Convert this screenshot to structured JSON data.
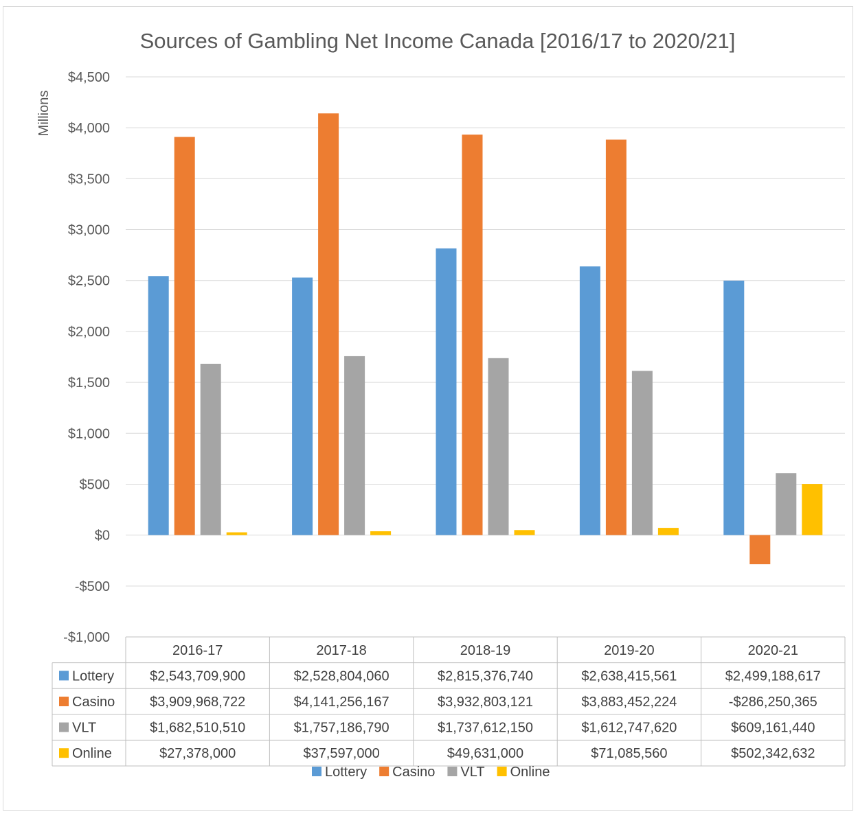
{
  "chart_data": {
    "type": "bar",
    "title": "Sources of Gambling Net Income Canada [2016/17 to 2020/21]",
    "ylabel": "Millions",
    "xlabel": "",
    "ylim": [
      -1000,
      4500
    ],
    "y_ticks": [
      -1000,
      -500,
      0,
      500,
      1000,
      1500,
      2000,
      2500,
      3000,
      3500,
      4000,
      4500
    ],
    "y_tick_labels": [
      "-$1,000",
      "-$500",
      "$0",
      "$500",
      "$1,000",
      "$1,500",
      "$2,000",
      "$2,500",
      "$3,000",
      "$3,500",
      "$4,000",
      "$4,500"
    ],
    "grid": true,
    "legend_position": "bottom",
    "categories": [
      "2016-17",
      "2017-18",
      "2018-19",
      "2019-20",
      "2020-21"
    ],
    "series": [
      {
        "name": "Lottery",
        "color": "#5b9bd5",
        "values": [
          2543709900,
          2528804060,
          2815376740,
          2638415561,
          2499188617
        ],
        "table_labels": [
          "$2,543,709,900",
          "$2,528,804,060",
          "$2,815,376,740",
          "$2,638,415,561",
          "$2,499,188,617"
        ]
      },
      {
        "name": "Casino",
        "color": "#ed7d31",
        "values": [
          3909968722,
          4141256167,
          3932803121,
          3883452224,
          -286250365
        ],
        "table_labels": [
          "$3,909,968,722",
          "$4,141,256,167",
          "$3,932,803,121",
          "$3,883,452,224",
          "-$286,250,365"
        ]
      },
      {
        "name": "VLT",
        "color": "#a5a5a5",
        "values": [
          1682510510,
          1757186790,
          1737612150,
          1612747620,
          609161440
        ],
        "table_labels": [
          "$1,682,510,510",
          "$1,757,186,790",
          "$1,737,612,150",
          "$1,612,747,620",
          "$609,161,440"
        ]
      },
      {
        "name": "Online",
        "color": "#ffc000",
        "values": [
          27378000,
          37597000,
          49631000,
          71085560,
          502342632
        ],
        "table_labels": [
          "$27,378,000",
          "$37,597,000",
          "$49,631,000",
          "$71,085,560",
          "$502,342,632"
        ]
      }
    ]
  }
}
